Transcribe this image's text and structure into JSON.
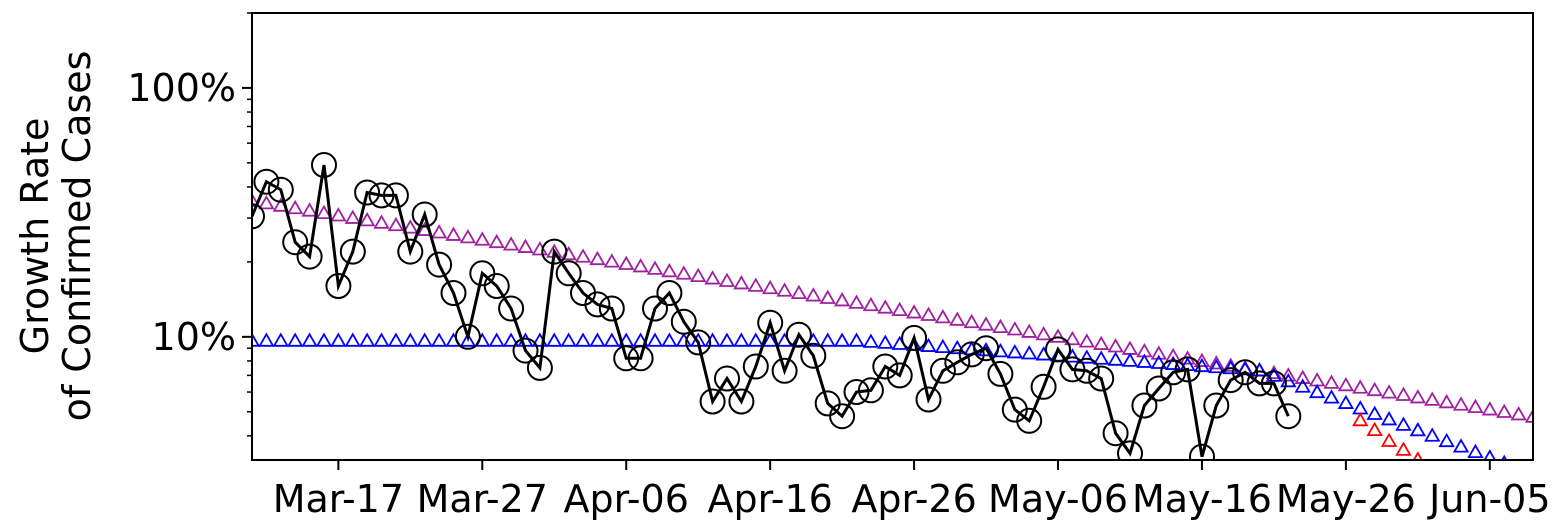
{
  "chart_data": {
    "type": "line",
    "title": "",
    "xlabel": "",
    "ylabel_lines": [
      "Growth Rate",
      "of Confirmed Cases"
    ],
    "y_scale": "log",
    "y_range": [
      "3.2%",
      "200%"
    ],
    "y_ticks": [
      {
        "label": "10%",
        "value": 10
      },
      {
        "label": "100%",
        "value": 100
      }
    ],
    "x_range": [
      "2020-03-11",
      "2020-06-08"
    ],
    "x_ticks": [
      {
        "label": "Mar-17",
        "date": "2020-03-17"
      },
      {
        "label": "Mar-27",
        "date": "2020-03-27"
      },
      {
        "label": "Apr-06",
        "date": "2020-04-06"
      },
      {
        "label": "Apr-16",
        "date": "2020-04-16"
      },
      {
        "label": "Apr-26",
        "date": "2020-04-26"
      },
      {
        "label": "May-06",
        "date": "2020-05-06"
      },
      {
        "label": "May-16",
        "date": "2020-05-16"
      },
      {
        "label": "May-26",
        "date": "2020-05-26"
      },
      {
        "label": "Jun-05",
        "date": "2020-06-05"
      }
    ],
    "grid": false,
    "legend": "none",
    "series": [
      {
        "style": "line-circle",
        "color": "#000000",
        "start": "2020-03-11",
        "values": [
          30.5,
          42,
          39,
          24,
          21,
          49,
          16,
          22,
          38,
          37,
          37,
          22,
          31,
          19.5,
          15,
          10,
          18,
          16,
          13,
          8.8,
          7.5,
          22,
          18,
          15,
          13.5,
          13,
          8.2,
          8.2,
          13,
          15,
          11.5,
          9.5,
          5.5,
          6.8,
          5.5,
          7.6,
          11.4,
          7.3,
          10.2,
          8.4,
          5.4,
          4.8,
          6.0,
          6.1,
          7.6,
          7.0,
          9.9,
          5.6,
          7.3,
          7.9,
          8.5,
          9.0,
          7.1,
          5.1,
          4.6,
          6.3,
          8.9,
          7.4,
          7.3,
          6.8,
          4.1,
          3.4,
          5.3,
          6.2,
          7.2,
          7.4,
          3.3,
          5.3,
          6.7,
          7.2,
          6.5,
          6.5,
          4.8
        ]
      },
      {
        "style": "triangle",
        "color": "#a020a0",
        "start": "2020-03-11",
        "end": "2020-06-08",
        "start_value": 35,
        "end_value": 4.75
      },
      {
        "style": "triangle",
        "color": "#0000ff",
        "start": "2020-03-11",
        "values_desc": "flat near 9.5% until late April, then slowly declining",
        "start_value": 9.6,
        "bend_date": "2020-04-22",
        "mid_value": 9.3,
        "mid_date": "2020-05-20",
        "end_of_slow_decline": 7.3,
        "fast_decline_end": "2020-06-06",
        "final_value": 3.1
      },
      {
        "style": "triangle",
        "color": "#ff0000",
        "points": [
          {
            "date": "2020-05-27",
            "value": 4.6
          },
          {
            "date": "2020-05-28",
            "value": 4.2
          },
          {
            "date": "2020-05-29",
            "value": 3.8
          },
          {
            "date": "2020-05-30",
            "value": 3.5
          },
          {
            "date": "2020-05-31",
            "value": 3.2
          }
        ]
      }
    ]
  }
}
